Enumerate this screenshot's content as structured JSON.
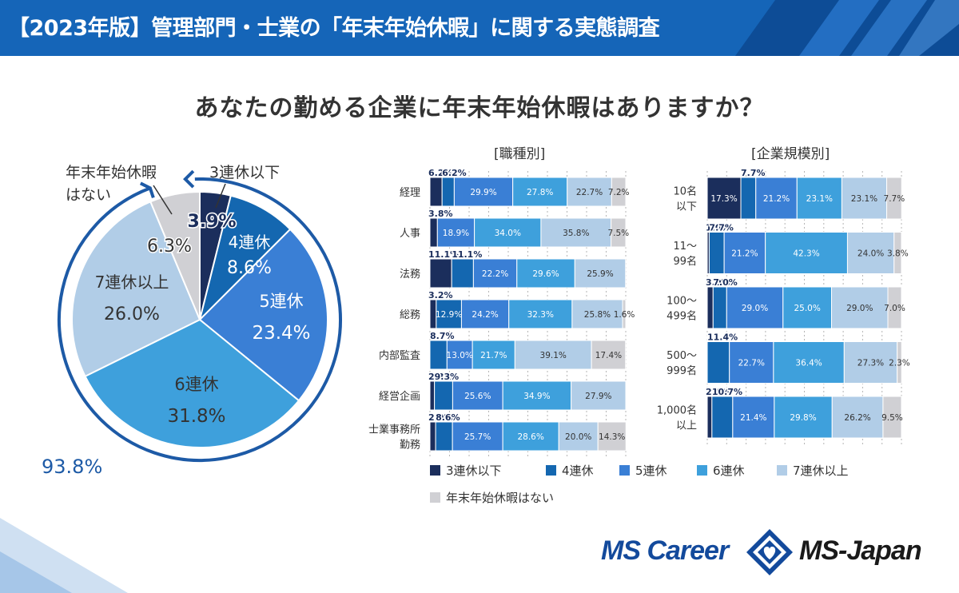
{
  "header": {
    "title": "【2023年版】管理部門・士業の「年末年始休暇」に関する実態調査"
  },
  "question": "あなたの勤める企業に年末年始休暇はありますか？",
  "colors": [
    "#1b2e5c",
    "#1467b0",
    "#3a7fd5",
    "#3ea0dc",
    "#b1cde7",
    "#d0d0d4"
  ],
  "categories": [
    "3連休以下",
    "4連休",
    "5連休",
    "6連休",
    "7連休以上",
    "年末年始休暇はない"
  ],
  "chart_data": [
    {
      "type": "pie",
      "title": "",
      "labels": [
        "3連休以下",
        "4連休",
        "5連休",
        "6連休",
        "7連休以上",
        "年末年始休暇はない"
      ],
      "values": [
        3.9,
        8.6,
        23.4,
        31.8,
        26.0,
        6.3
      ],
      "value_labels": [
        "3.9%",
        "8.6%",
        "23.4%",
        "31.8%",
        "26.0%",
        "6.3%"
      ],
      "display_labels": [
        "3連休以下",
        "4連休",
        "5連休",
        "6連休",
        "7連休以上",
        "年末年始休暇\nはない"
      ],
      "annotation": "93.8%"
    },
    {
      "type": "bar",
      "stacked": true,
      "horizontal": true,
      "title": "[職種別]",
      "categories": [
        "経理",
        "人事",
        "法務",
        "総務",
        "内部監査",
        "経営企画",
        "士業事務所\n勤務"
      ],
      "series": [
        {
          "name": "3連休以下",
          "values": [
            6.2,
            3.8,
            11.1,
            3.2,
            0,
            2.3,
            2.9
          ]
        },
        {
          "name": "4連休",
          "values": [
            6.2,
            0,
            11.1,
            12.9,
            8.7,
            9.3,
            8.6
          ]
        },
        {
          "name": "5連休",
          "values": [
            29.9,
            18.9,
            22.2,
            24.2,
            13.0,
            25.6,
            25.7
          ]
        },
        {
          "name": "6連休",
          "values": [
            27.8,
            34.0,
            29.6,
            32.3,
            21.7,
            34.9,
            28.6
          ]
        },
        {
          "name": "7連休以上",
          "values": [
            22.7,
            35.8,
            25.9,
            25.8,
            39.1,
            27.9,
            20.0
          ]
        },
        {
          "name": "年末年始休暇はない",
          "values": [
            7.2,
            7.5,
            0,
            1.6,
            17.4,
            0,
            14.3
          ]
        }
      ],
      "labels": [
        [
          "6.2%",
          "6.2%",
          "29.9%",
          "27.8%",
          "22.7%",
          "7.2%"
        ],
        [
          "3.8%",
          "",
          "18.9%",
          "34.0%",
          "35.8%",
          "7.5%"
        ],
        [
          "11.1%",
          "11.1%",
          "22.2%",
          "29.6%",
          "25.9%",
          ""
        ],
        [
          "3.2%",
          "12.9%",
          "24.2%",
          "32.3%",
          "25.8%",
          "1.6%"
        ],
        [
          "",
          "8.7%",
          "13.0%",
          "21.7%",
          "39.1%",
          "17.4%"
        ],
        [
          "2.3%",
          "9.3%",
          "25.6%",
          "34.9%",
          "27.9%",
          ""
        ],
        [
          "2.9%",
          "8.6%",
          "25.7%",
          "28.6%",
          "20.0%",
          "14.3%"
        ]
      ],
      "xlim": [
        0,
        100
      ]
    },
    {
      "type": "bar",
      "stacked": true,
      "horizontal": true,
      "title": "[企業規模別]",
      "categories": [
        "10名\n以下",
        "11～\n99名",
        "100～\n499名",
        "500～\n999名",
        "1,000名\n以上"
      ],
      "series": [
        {
          "name": "3連休以下",
          "values": [
            17.3,
            1.0,
            3.0,
            0,
            2.4
          ]
        },
        {
          "name": "4連休",
          "values": [
            7.7,
            7.7,
            7.0,
            11.4,
            10.7
          ]
        },
        {
          "name": "5連休",
          "values": [
            21.2,
            21.2,
            29.0,
            22.7,
            21.4
          ]
        },
        {
          "name": "6連休",
          "values": [
            23.1,
            42.3,
            25.0,
            36.4,
            29.8
          ]
        },
        {
          "name": "7連休以上",
          "values": [
            23.1,
            24.0,
            29.0,
            27.3,
            26.2
          ]
        },
        {
          "name": "年末年始休暇はない",
          "values": [
            7.7,
            3.8,
            7.0,
            2.3,
            9.5
          ]
        }
      ],
      "labels": [
        [
          "17.3%",
          "7.7%",
          "21.2%",
          "23.1%",
          "23.1%",
          "7.7%"
        ],
        [
          "1.0%",
          "7.7%",
          "21.2%",
          "42.3%",
          "24.0%",
          "3.8%"
        ],
        [
          "3.0%",
          "7.0%",
          "29.0%",
          "25.0%",
          "29.0%",
          "7.0%"
        ],
        [
          "",
          "11.4%",
          "22.7%",
          "36.4%",
          "27.3%",
          "2.3%"
        ],
        [
          "2.4%",
          "10.7%",
          "21.4%",
          "29.8%",
          "26.2%",
          "9.5%"
        ]
      ],
      "xlim": [
        0,
        100
      ]
    }
  ],
  "logos": {
    "mscareer": "MS Career",
    "msjapan": "MS-Japan"
  }
}
